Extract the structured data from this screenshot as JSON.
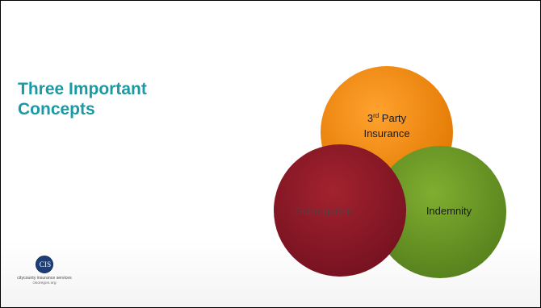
{
  "slide": {
    "title_line1": "Three Important",
    "title_line2": "Concepts",
    "title_color": "#1a9aa5"
  },
  "venn": {
    "circles": [
      {
        "id": "third-party-insurance",
        "label": "3",
        "superscript": "rd",
        "label_rest": " Party",
        "label_line2": "Insurance",
        "fill": "#f08a0e",
        "text_color": "#1a1a1a"
      },
      {
        "id": "indemnity",
        "label": "Indemnity",
        "fill": "#6f9a2a",
        "text_color": "#1a1a1a"
      },
      {
        "id": "subrogation",
        "label": "Subrogation",
        "fill": "#8f1a29",
        "text_color": "#5a3a40"
      }
    ]
  },
  "logo": {
    "mark": "CIS",
    "name": "citycounty insurance services",
    "url": "cisoregon.org",
    "color": "#1d3f79"
  }
}
